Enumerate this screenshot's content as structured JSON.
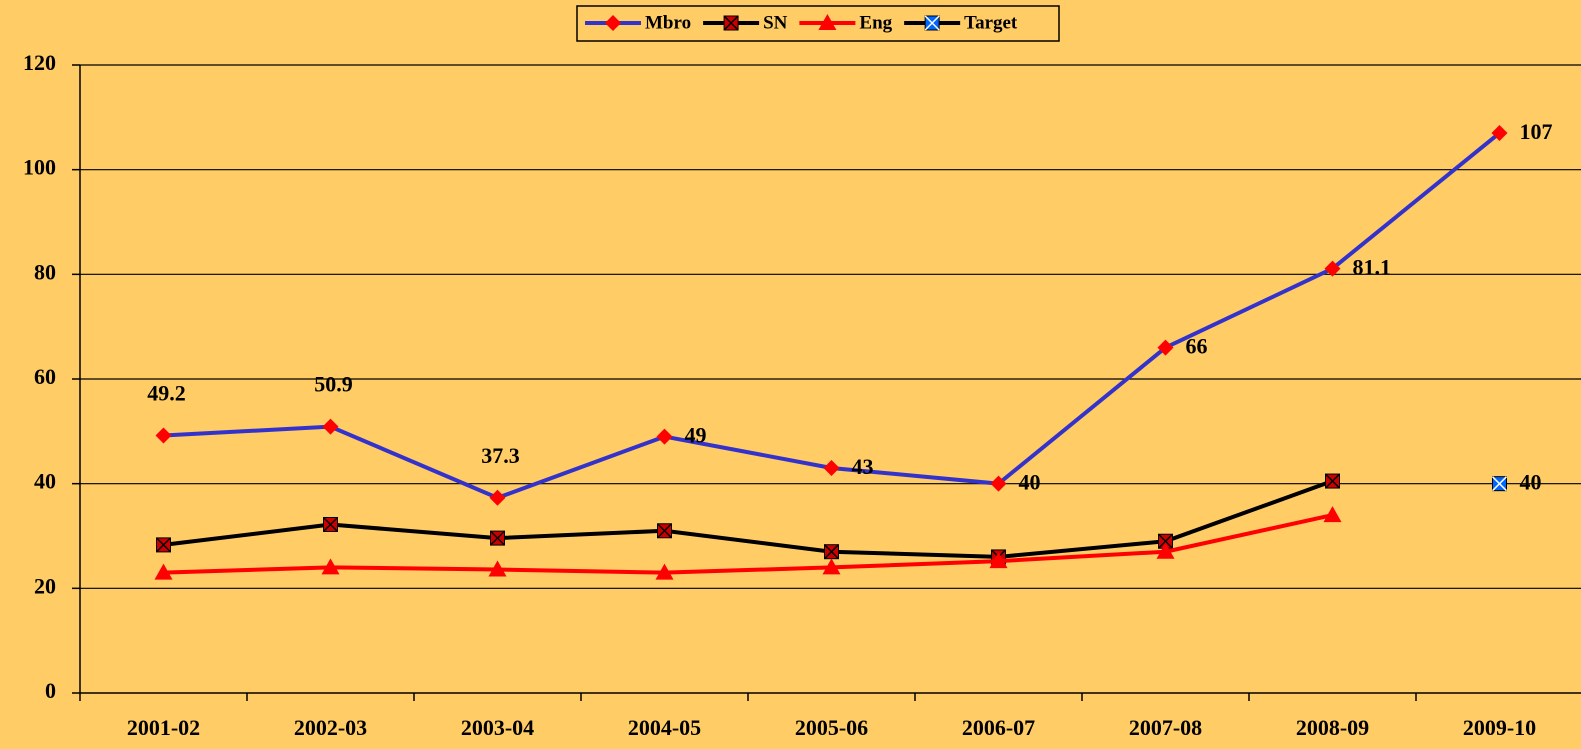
{
  "chart_data": {
    "type": "line",
    "categories": [
      "2001-02",
      "2002-03",
      "2003-04",
      "2004-05",
      "2005-06",
      "2006-07",
      "2007-08",
      "2008-09",
      "2009-10"
    ],
    "series": [
      {
        "name": "Mbro",
        "color": "#3333cc",
        "marker": "diamond",
        "marker_color": "#ff0000",
        "data_labels": true,
        "values": [
          49.2,
          50.9,
          37.3,
          49,
          43,
          40,
          66,
          81.1,
          107
        ]
      },
      {
        "name": "SN",
        "color": "#000000",
        "marker": "xsquare",
        "marker_color": "#cc0000",
        "data_labels": false,
        "values": [
          28.3,
          32.2,
          29.6,
          31,
          27,
          26,
          29,
          40.5,
          null
        ]
      },
      {
        "name": "Eng",
        "color": "#ff0000",
        "marker": "triangle",
        "marker_color": "#ff0000",
        "data_labels": false,
        "values": [
          23,
          24,
          23.6,
          23,
          24,
          25.2,
          27,
          34,
          null
        ]
      },
      {
        "name": "Target",
        "color": "#000000",
        "marker": "xsquare",
        "marker_color": "#0066ff",
        "data_labels": true,
        "values": [
          null,
          null,
          null,
          null,
          null,
          null,
          null,
          null,
          40
        ]
      }
    ],
    "ylim": [
      0,
      120
    ],
    "yticks": [
      0,
      20,
      40,
      60,
      80,
      100,
      120
    ],
    "grid": true,
    "legend": "top"
  }
}
